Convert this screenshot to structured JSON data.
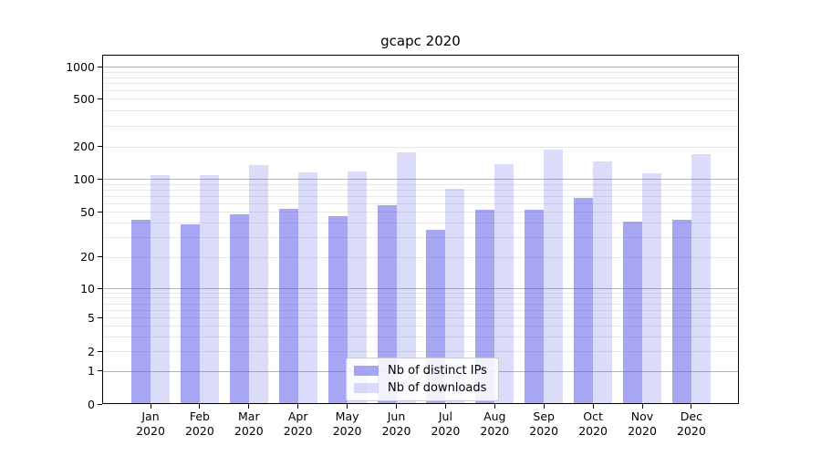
{
  "title": "gcapc 2020",
  "colors": {
    "ips": "rgba(85,85,230,0.52)",
    "downloads": "rgba(85,85,230,0.21)",
    "major_grid": "#b3b3b3",
    "minor_grid": "#e9e9e9",
    "spine": "#000000",
    "background": "#ffffff"
  },
  "legend": {
    "items": [
      {
        "label": "Nb of distinct IPs",
        "color_key": "ips"
      },
      {
        "label": "Nb of downloads",
        "color_key": "downloads"
      }
    ]
  },
  "chart_data": {
    "type": "bar",
    "title": "gcapc 2020",
    "categories": [
      "Jan 2020",
      "Feb 2020",
      "Mar 2020",
      "Apr 2020",
      "May 2020",
      "Jun 2020",
      "Jul 2020",
      "Aug 2020",
      "Sep 2020",
      "Oct 2020",
      "Nov 2020",
      "Dec 2020"
    ],
    "series": [
      {
        "name": "Nb of distinct IPs",
        "color_key": "ips",
        "values": [
          42,
          38,
          47,
          52,
          45,
          56,
          34,
          51,
          51,
          66,
          40,
          42
        ]
      },
      {
        "name": "Nb of downloads",
        "color_key": "downloads",
        "values": [
          106,
          106,
          131,
          112,
          115,
          172,
          80,
          134,
          183,
          143,
          110,
          167
        ]
      }
    ],
    "xlabel": "",
    "ylabel": "",
    "y_axis": {
      "scale": "symlog",
      "tick_labels": [
        0,
        1,
        2,
        5,
        10,
        20,
        50,
        100,
        200,
        500,
        1000
      ],
      "major_gridline_values": [
        1,
        10,
        100,
        1000
      ],
      "range": [
        0,
        1300
      ]
    },
    "legend_position": "lower center",
    "grid": "horizontal, log minor gridlines"
  }
}
